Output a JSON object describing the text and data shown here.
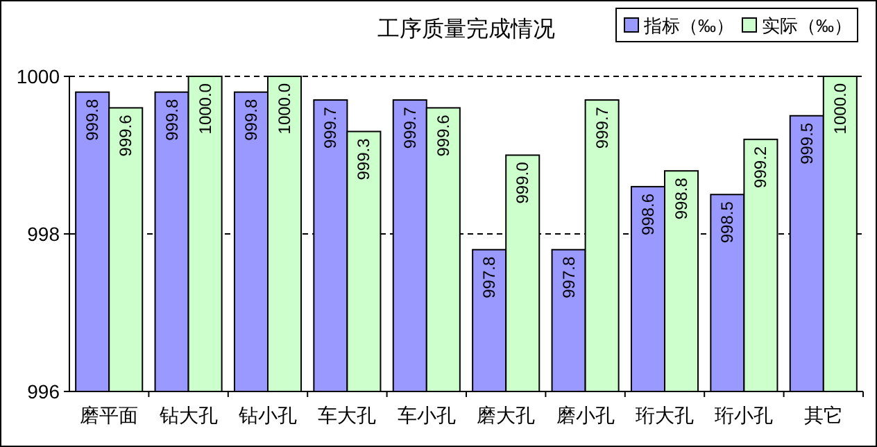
{
  "chart_data": {
    "type": "bar",
    "title": "工序质量完成情况",
    "categories": [
      "磨平面",
      "钻大孔",
      "钻小孔",
      "车大孔",
      "车小孔",
      "磨大孔",
      "磨小孔",
      "珩大孔",
      "珩小孔",
      "其它"
    ],
    "series": [
      {
        "name": "指标（‰）",
        "color": "#9999ff",
        "values": [
          999.8,
          999.8,
          999.8,
          999.7,
          999.7,
          997.8,
          997.8,
          998.6,
          998.5,
          999.5
        ],
        "value_labels": [
          "999.8",
          "999.8",
          "999.8",
          "999.7",
          "999.7",
          "997.8",
          "997.8",
          "998.6",
          "998.5",
          "999.5"
        ]
      },
      {
        "name": "实际（‰）",
        "color": "#ccffcc",
        "values": [
          999.6,
          1000.0,
          1000.0,
          999.3,
          999.6,
          999.0,
          999.7,
          998.8,
          999.2,
          1000.0
        ],
        "value_labels": [
          "999.6",
          "1000.0",
          "1000.0",
          "999.3",
          "999.6",
          "999.0",
          "999.7",
          "998.8",
          "999.2",
          "1000.0"
        ]
      }
    ],
    "ylim": [
      996,
      1000
    ],
    "yticks": [
      996,
      998,
      1000
    ],
    "grid": "y",
    "legend": "top right"
  }
}
